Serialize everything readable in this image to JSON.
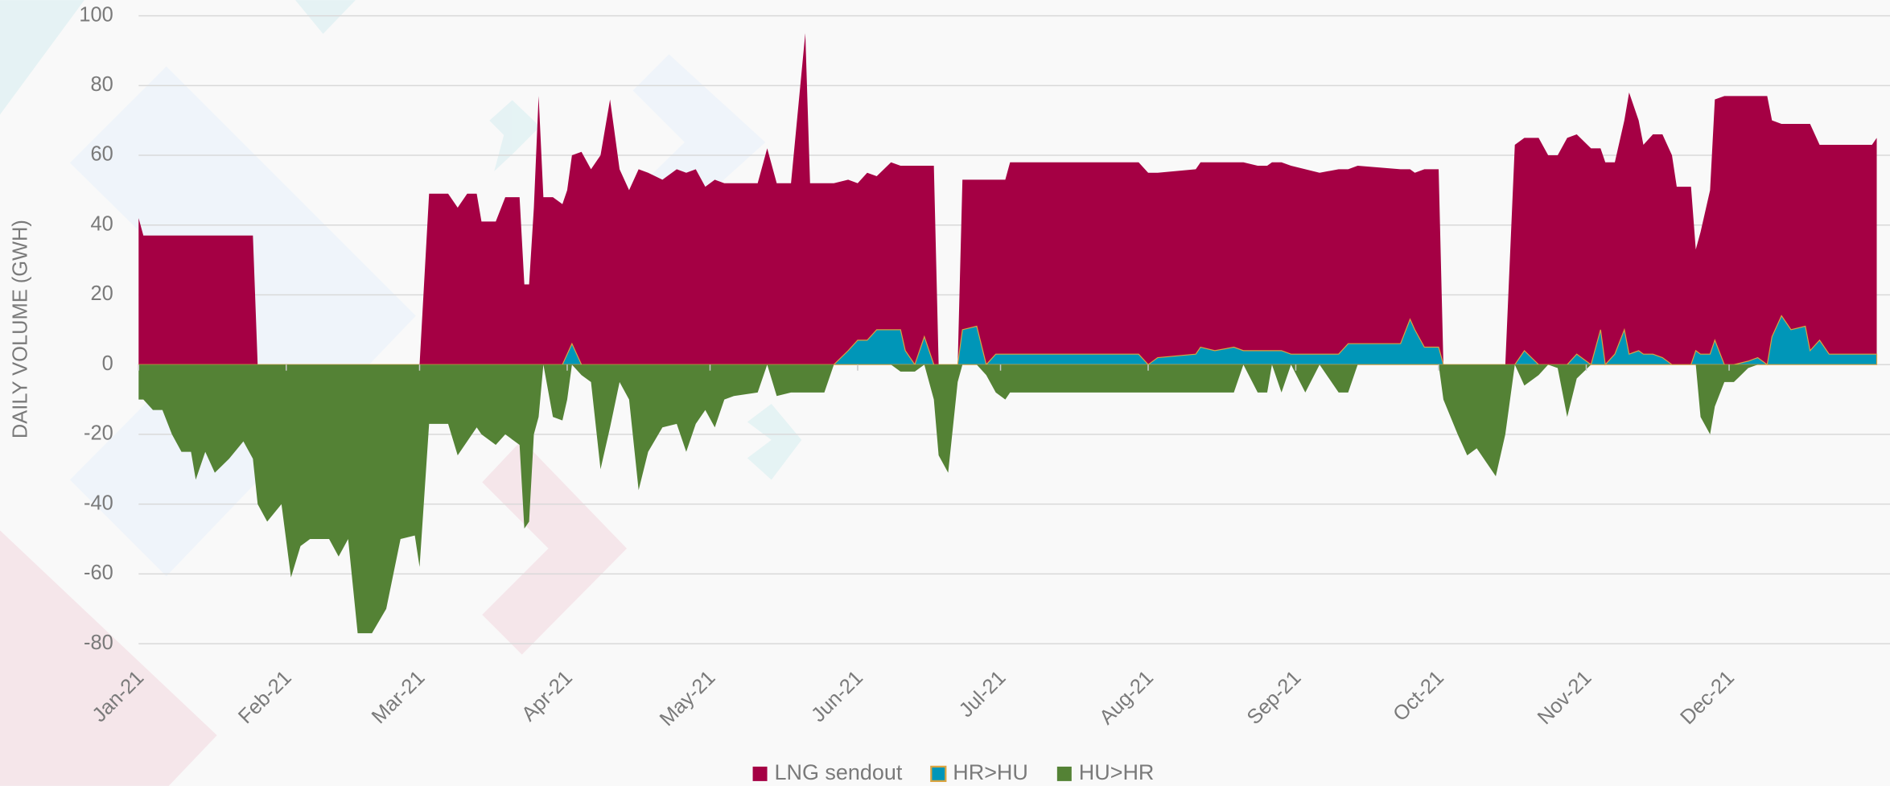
{
  "chart_data": {
    "type": "area",
    "y_label": "DAILY VOLUME (GWH)",
    "ylim": [
      -80,
      100
    ],
    "yticks": [
      -80,
      -60,
      -40,
      -20,
      0,
      20,
      40,
      60,
      80,
      100
    ],
    "xlim": [
      0,
      365
    ],
    "xticks": [
      {
        "value": 0,
        "label": "Jan-21"
      },
      {
        "value": 31,
        "label": "Feb-21"
      },
      {
        "value": 59,
        "label": "Mar-21"
      },
      {
        "value": 90,
        "label": "Apr-21"
      },
      {
        "value": 120,
        "label": "May-21"
      },
      {
        "value": 151,
        "label": "Jun-21"
      },
      {
        "value": 181,
        "label": "Jul-21"
      },
      {
        "value": 212,
        "label": "Aug-21"
      },
      {
        "value": 243,
        "label": "Sep-21"
      },
      {
        "value": 273,
        "label": "Oct-21"
      },
      {
        "value": 304,
        "label": "Nov-21"
      },
      {
        "value": 334,
        "label": "Dec-21"
      }
    ],
    "grid": true,
    "legend": "bottom",
    "x": [
      0,
      1,
      3,
      5,
      7,
      9,
      11,
      12,
      14,
      16,
      19,
      22,
      24,
      25,
      27,
      30,
      32,
      34,
      36,
      40,
      42,
      44,
      46,
      49,
      52,
      55,
      58,
      59,
      61,
      65,
      67,
      69,
      71,
      72,
      75,
      77,
      80,
      81,
      82,
      83,
      84,
      85,
      87,
      89,
      90,
      91,
      93,
      95,
      97,
      99,
      101,
      103,
      105,
      107,
      110,
      113,
      115,
      117,
      119,
      121,
      123,
      125,
      130,
      132,
      134,
      137,
      140,
      141,
      144,
      146,
      149,
      151,
      153,
      155,
      158,
      160,
      161,
      163,
      165,
      167,
      168,
      170,
      172,
      173,
      176,
      178,
      180,
      182,
      183,
      200,
      202,
      210,
      212,
      214,
      222,
      223,
      226,
      230,
      232,
      235,
      237,
      238,
      240,
      242,
      245,
      248,
      252,
      254,
      256,
      265,
      267,
      268,
      270,
      273,
      274,
      277,
      279,
      281,
      283,
      285,
      287,
      289,
      291,
      294,
      296,
      298,
      300,
      302,
      305,
      307,
      308,
      310,
      312,
      313,
      315,
      316,
      318,
      320,
      322,
      323,
      326,
      327,
      328,
      330,
      331,
      333,
      335,
      338,
      340,
      342,
      343,
      345,
      347,
      350,
      351,
      353,
      355,
      360,
      364,
      365
    ],
    "series": [
      {
        "name": "LNG sendout",
        "color": "#a50044",
        "values": [
          42,
          37,
          37,
          37,
          37,
          37,
          37,
          37,
          37,
          37,
          37,
          37,
          37,
          0,
          0,
          0,
          0,
          0,
          0,
          0,
          0,
          0,
          0,
          0,
          0,
          0,
          0,
          0,
          49,
          49,
          45,
          49,
          49,
          41,
          41,
          48,
          48,
          23,
          23,
          45,
          77,
          48,
          48,
          46,
          50,
          60,
          61,
          56,
          60,
          76,
          56,
          50,
          56,
          55,
          53,
          56,
          55,
          56,
          51,
          53,
          52,
          52,
          52,
          62,
          52,
          52,
          95,
          52,
          52,
          52,
          53,
          52,
          55,
          54,
          58,
          57,
          57,
          57,
          57,
          57,
          0,
          0,
          0,
          53,
          53,
          53,
          53,
          53,
          58,
          58,
          58,
          58,
          55,
          55,
          56,
          58,
          58,
          58,
          58,
          57,
          57,
          58,
          58,
          57,
          56,
          55,
          56,
          56,
          57,
          56,
          56,
          55,
          56,
          56,
          0,
          0,
          0,
          0,
          0,
          0,
          0,
          63,
          65,
          65,
          60,
          60,
          65,
          66,
          62,
          62,
          58,
          58,
          70,
          78,
          70,
          63,
          66,
          66,
          60,
          51,
          51,
          33,
          38,
          50,
          76,
          77,
          77,
          77,
          77,
          77,
          70,
          69,
          69,
          69,
          69,
          63,
          63,
          63,
          63,
          65
        ]
      },
      {
        "name": "HR>HU",
        "color": "#0096b8",
        "values": [
          0,
          0,
          0,
          0,
          0,
          0,
          0,
          0,
          0,
          0,
          0,
          0,
          0,
          0,
          0,
          0,
          0,
          0,
          0,
          0,
          0,
          0,
          0,
          0,
          0,
          0,
          0,
          0,
          0,
          0,
          0,
          0,
          0,
          0,
          0,
          0,
          0,
          0,
          0,
          0,
          0,
          0,
          0,
          0,
          3,
          6,
          0,
          0,
          0,
          0,
          0,
          0,
          0,
          0,
          0,
          0,
          0,
          0,
          0,
          0,
          0,
          0,
          0,
          0,
          0,
          0,
          0,
          0,
          0,
          0,
          4,
          7,
          7,
          10,
          10,
          10,
          4,
          0,
          8,
          0,
          0,
          0,
          0,
          10,
          11,
          0,
          3,
          3,
          3,
          3,
          3,
          3,
          0,
          2,
          3,
          5,
          4,
          5,
          4,
          4,
          4,
          4,
          4,
          3,
          3,
          3,
          3,
          6,
          6,
          6,
          13,
          10,
          5,
          5,
          0,
          0,
          0,
          0,
          0,
          0,
          0,
          0,
          4,
          0,
          0,
          0,
          0,
          3,
          0,
          10,
          0,
          3,
          10,
          3,
          4,
          3,
          3,
          2,
          0,
          0,
          0,
          4,
          3,
          3,
          7,
          0,
          0,
          1,
          2,
          0,
          8,
          14,
          10,
          11,
          4,
          7,
          3,
          3,
          3,
          3
        ]
      },
      {
        "name": "HU>HR",
        "color": "#548235",
        "values": [
          -10,
          -10,
          -13,
          -13,
          -20,
          -25,
          -25,
          -33,
          -25,
          -31,
          -27,
          -22,
          -27,
          -40,
          -45,
          -40,
          -61,
          -52,
          -50,
          -50,
          -55,
          -50,
          -77,
          -77,
          -70,
          -50,
          -49,
          -58,
          -17,
          -17,
          -26,
          -22,
          -18,
          -20,
          -23,
          -20,
          -23,
          -47,
          -45,
          -20,
          -15,
          0,
          -15,
          -16,
          -10,
          0,
          -3,
          -5,
          -30,
          -18,
          -5,
          -10,
          -36,
          -25,
          -18,
          -17,
          -25,
          -17,
          -13,
          -18,
          -10,
          -9,
          -8,
          0,
          -9,
          -8,
          -8,
          -8,
          -8,
          0,
          0,
          0,
          0,
          0,
          0,
          -2,
          -2,
          -2,
          0,
          -10,
          -26,
          -31,
          -5,
          0,
          0,
          -3,
          -8,
          -10,
          -8,
          -8,
          -8,
          -8,
          -8,
          -8,
          -8,
          -8,
          -8,
          -8,
          0,
          -8,
          -8,
          0,
          -8,
          0,
          -8,
          0,
          -8,
          -8,
          0,
          0,
          0,
          0,
          0,
          0,
          -10,
          -20,
          -26,
          -24,
          -28,
          -32,
          -20,
          0,
          -6,
          -3,
          0,
          -1,
          -15,
          -4,
          0,
          0,
          0,
          0,
          0,
          0,
          0,
          0,
          0,
          0,
          0,
          0,
          0,
          0,
          -15,
          -20,
          -12,
          -5,
          -5,
          -1,
          0,
          0,
          0,
          0,
          0,
          0,
          0,
          0,
          0,
          0,
          0,
          0
        ]
      }
    ]
  }
}
